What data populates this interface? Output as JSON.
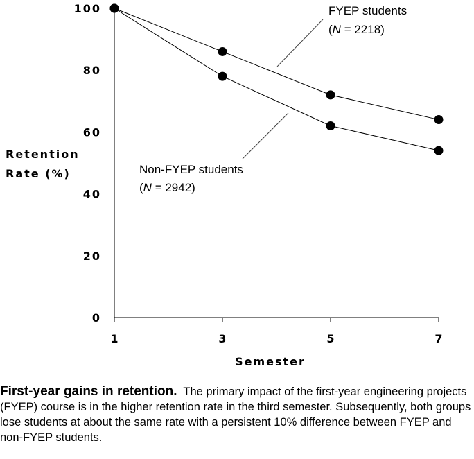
{
  "chart_data": {
    "type": "line",
    "xlabel": "Semester",
    "ylabel_lines": [
      "Retention",
      "Rate (%)"
    ],
    "x": [
      1,
      3,
      5,
      7
    ],
    "xticks": [
      "1",
      "3",
      "5",
      "7"
    ],
    "yticks": [
      "0",
      "20",
      "40",
      "60",
      "80",
      "100"
    ],
    "ylim": [
      0,
      100
    ],
    "grid": false,
    "series": [
      {
        "name": "FYEP students",
        "n_label": "N",
        "n_value": "= 2218",
        "values": [
          100,
          86,
          72,
          64
        ]
      },
      {
        "name": "Non-FYEP students",
        "n_label": "N",
        "n_value": "= 2942",
        "values": [
          100,
          78,
          62,
          54
        ]
      }
    ]
  },
  "caption": {
    "title": "First-year gains in retention",
    "body": "The primary impact of the first-year engineering projects (FYEP) course is in the higher retention rate in the third semester.  Subsequently, both groups lose students at about the same rate with a persistent 10% difference between FYEP and non-FYEP students."
  }
}
